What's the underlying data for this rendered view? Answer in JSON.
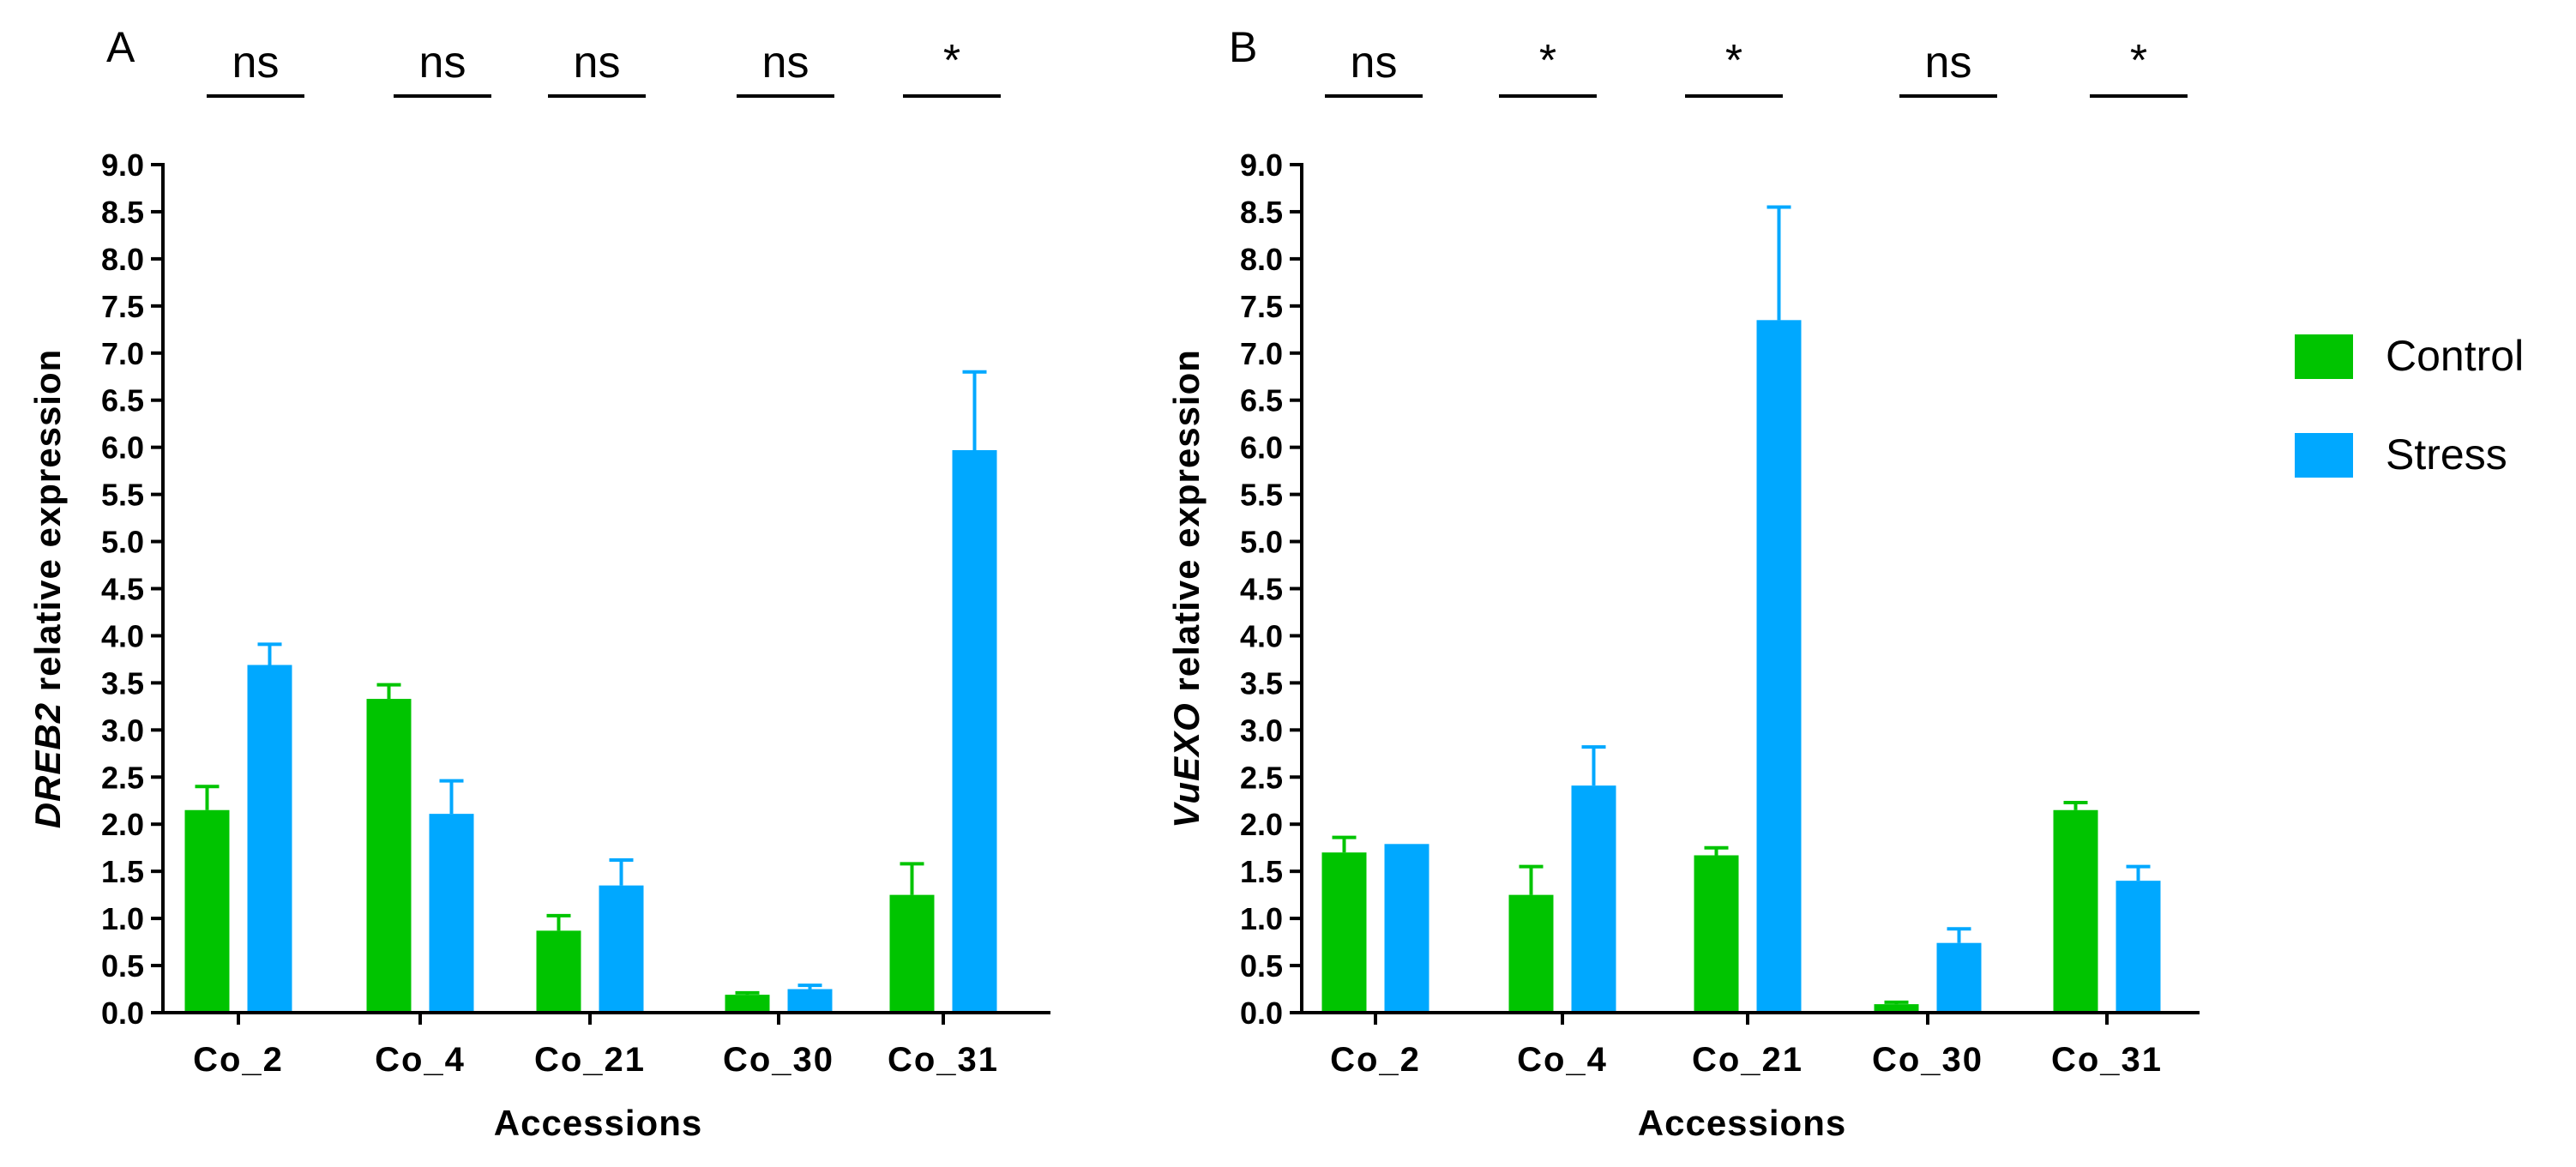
{
  "legend": {
    "entries": [
      {
        "label": "Control",
        "color": "#00c400"
      },
      {
        "label": "Stress",
        "color": "#00a8ff"
      }
    ]
  },
  "chart_data": [
    {
      "type": "bar",
      "panel": "A",
      "categories": [
        "Co_2",
        "Co_4",
        "Co_21",
        "Co_30",
        "Co_31"
      ],
      "series": [
        {
          "name": "Control",
          "values": [
            2.15,
            3.33,
            0.87,
            0.19,
            1.25
          ],
          "errors": [
            0.25,
            0.15,
            0.16,
            0.02,
            0.33
          ]
        },
        {
          "name": "Stress",
          "values": [
            3.69,
            2.11,
            1.35,
            0.25,
            5.97
          ],
          "errors": [
            0.22,
            0.35,
            0.27,
            0.04,
            0.83
          ]
        }
      ],
      "significance": [
        "ns",
        "ns",
        "ns",
        "ns",
        "*"
      ],
      "xlabel": "Accessions",
      "ylabel_italic": "DREB2",
      "ylabel_rest": " relative expression",
      "ylim": [
        0,
        9
      ],
      "ytick_step": 0.5
    },
    {
      "type": "bar",
      "panel": "B",
      "categories": [
        "Co_2",
        "Co_4",
        "Co_21",
        "Co_30",
        "Co_31"
      ],
      "series": [
        {
          "name": "Control",
          "values": [
            1.7,
            1.25,
            1.67,
            0.09,
            2.15
          ],
          "errors": [
            0.16,
            0.3,
            0.08,
            0.02,
            0.08
          ]
        },
        {
          "name": "Stress",
          "values": [
            1.79,
            2.41,
            7.35,
            0.74,
            1.4
          ],
          "errors": [
            0.0,
            0.41,
            1.2,
            0.15,
            0.15
          ]
        }
      ],
      "significance": [
        "ns",
        "*",
        "*",
        "ns",
        "*"
      ],
      "xlabel": "Accessions",
      "ylabel_italic": "VuEXO",
      "ylabel_rest": " relative expression",
      "ylim": [
        0,
        9
      ],
      "ytick_step": 0.5
    }
  ]
}
